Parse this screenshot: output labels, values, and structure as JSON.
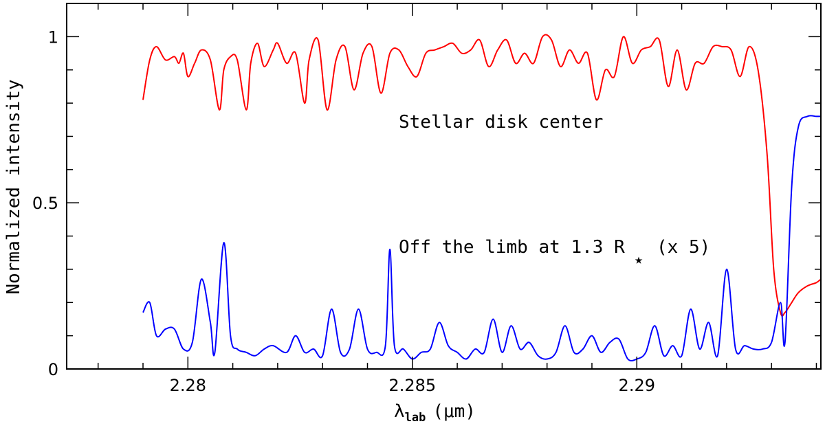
{
  "chart_data": {
    "type": "line",
    "title": "",
    "xlabel": "λ",
    "xlabel_sub": "lab",
    "xlabel_unit": "(μm)",
    "ylabel": "Normalized intensity",
    "xlim": [
      2.2773,
      2.2941
    ],
    "ylim": [
      0,
      1.1
    ],
    "xticks": [
      2.28,
      2.285,
      2.29
    ],
    "xtick_labels": [
      "2.28",
      "2.285",
      "2.29"
    ],
    "yticks": [
      0,
      0.5,
      1
    ],
    "ytick_labels": [
      "0",
      "0.5",
      "1"
    ],
    "grid": false,
    "annotations": {
      "disk": "Stellar disk center",
      "limb_prefix": "Off the limb at 1.3 R",
      "limb_star": "★",
      "limb_suffix": "(x 5)"
    },
    "series": [
      {
        "color": "#ff0000",
        "x": [
          2.279,
          2.27915,
          2.2793,
          2.2795,
          2.2797,
          2.2798,
          2.2799,
          2.28,
          2.28015,
          2.2803,
          2.2805,
          2.2807,
          2.2808,
          2.28095,
          2.2811,
          2.2813,
          2.2814,
          2.28155,
          2.2817,
          2.2819,
          2.282,
          2.2822,
          2.2824,
          2.2826,
          2.2827,
          2.2829,
          2.2831,
          2.2833,
          2.2835,
          2.2837,
          2.2839,
          2.2841,
          2.2843,
          2.2845,
          2.2847,
          2.2849,
          2.2851,
          2.2853,
          2.2855,
          2.2857,
          2.2859,
          2.2861,
          2.2863,
          2.2865,
          2.2867,
          2.2869,
          2.2871,
          2.2873,
          2.2875,
          2.2877,
          2.2879,
          2.2881,
          2.2883,
          2.2885,
          2.2887,
          2.2889,
          2.2891,
          2.2893,
          2.2895,
          2.2897,
          2.2899,
          2.2901,
          2.2903,
          2.2905,
          2.2907,
          2.2909,
          2.2911,
          2.2913,
          2.2915,
          2.2917,
          2.2919,
          2.2921,
          2.2923,
          2.2925,
          2.2927,
          2.2929,
          2.29305,
          2.2932,
          2.2933,
          2.29345,
          2.2936,
          2.2938,
          2.294,
          2.2941
        ],
        "y": [
          0.81,
          0.93,
          0.97,
          0.93,
          0.94,
          0.92,
          0.95,
          0.88,
          0.92,
          0.96,
          0.93,
          0.78,
          0.9,
          0.94,
          0.93,
          0.78,
          0.92,
          0.98,
          0.91,
          0.96,
          0.98,
          0.92,
          0.95,
          0.8,
          0.93,
          0.99,
          0.78,
          0.93,
          0.97,
          0.84,
          0.95,
          0.97,
          0.83,
          0.95,
          0.96,
          0.91,
          0.88,
          0.95,
          0.96,
          0.97,
          0.98,
          0.95,
          0.96,
          0.99,
          0.91,
          0.96,
          0.99,
          0.92,
          0.95,
          0.92,
          1.0,
          0.99,
          0.91,
          0.96,
          0.92,
          0.95,
          0.81,
          0.9,
          0.88,
          1.0,
          0.92,
          0.96,
          0.97,
          0.99,
          0.85,
          0.96,
          0.84,
          0.92,
          0.92,
          0.97,
          0.97,
          0.96,
          0.88,
          0.97,
          0.9,
          0.65,
          0.3,
          0.17,
          0.17,
          0.2,
          0.23,
          0.25,
          0.26,
          0.27
        ]
      },
      {
        "color": "#0000ff",
        "x": [
          2.279,
          2.27915,
          2.2793,
          2.2795,
          2.2797,
          2.2799,
          2.2801,
          2.2803,
          2.2805,
          2.2806,
          2.2808,
          2.28095,
          2.2811,
          2.2813,
          2.2815,
          2.2817,
          2.2819,
          2.2822,
          2.2824,
          2.2826,
          2.2828,
          2.283,
          2.2832,
          2.2834,
          2.2836,
          2.2838,
          2.284,
          2.2842,
          2.2844,
          2.2845,
          2.2846,
          2.2848,
          2.285,
          2.2852,
          2.2854,
          2.2856,
          2.2858,
          2.286,
          2.2862,
          2.2864,
          2.2866,
          2.2868,
          2.287,
          2.2872,
          2.2874,
          2.2876,
          2.2878,
          2.288,
          2.2882,
          2.2884,
          2.2886,
          2.2888,
          2.289,
          2.2892,
          2.2894,
          2.2896,
          2.2898,
          2.29,
          2.2902,
          2.2904,
          2.2906,
          2.2908,
          2.291,
          2.2912,
          2.2914,
          2.2916,
          2.2918,
          2.292,
          2.2922,
          2.2924,
          2.2926,
          2.2928,
          2.293,
          2.2932,
          2.2933,
          2.29345,
          2.2936,
          2.2938,
          2.294,
          2.2941
        ],
        "y": [
          0.17,
          0.2,
          0.1,
          0.12,
          0.12,
          0.06,
          0.08,
          0.27,
          0.14,
          0.05,
          0.38,
          0.1,
          0.06,
          0.05,
          0.04,
          0.06,
          0.07,
          0.05,
          0.1,
          0.05,
          0.06,
          0.04,
          0.18,
          0.05,
          0.06,
          0.18,
          0.06,
          0.05,
          0.07,
          0.36,
          0.07,
          0.06,
          0.03,
          0.05,
          0.06,
          0.14,
          0.07,
          0.05,
          0.03,
          0.06,
          0.05,
          0.15,
          0.05,
          0.13,
          0.06,
          0.08,
          0.04,
          0.03,
          0.05,
          0.13,
          0.05,
          0.06,
          0.1,
          0.05,
          0.08,
          0.09,
          0.03,
          0.03,
          0.05,
          0.13,
          0.04,
          0.07,
          0.04,
          0.18,
          0.06,
          0.14,
          0.04,
          0.3,
          0.06,
          0.07,
          0.06,
          0.06,
          0.08,
          0.2,
          0.08,
          0.55,
          0.73,
          0.76,
          0.76,
          0.76
        ]
      }
    ]
  }
}
